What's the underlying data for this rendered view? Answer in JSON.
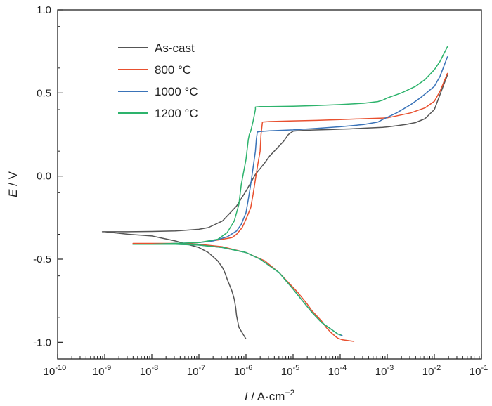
{
  "chart_data": {
    "type": "line",
    "xlabel_var": "I",
    "xlabel_unit": " / A·cm",
    "xlabel_exp": "−2",
    "ylabel_var": "E",
    "ylabel_unit": " / V",
    "x_scale": "log",
    "xlim": [
      -10,
      -1
    ],
    "ylim": [
      -1.1,
      1.0
    ],
    "x_ticks": [
      {
        "exp": -10,
        "mantissa": "10",
        "power": "-10"
      },
      {
        "exp": -9,
        "mantissa": "10",
        "power": "-9"
      },
      {
        "exp": -8,
        "mantissa": "10",
        "power": "-8"
      },
      {
        "exp": -7,
        "mantissa": "10",
        "power": "-7"
      },
      {
        "exp": -6,
        "mantissa": "10",
        "power": "-6"
      },
      {
        "exp": -5,
        "mantissa": "10",
        "power": "-5"
      },
      {
        "exp": -4,
        "mantissa": "10",
        "power": "-4"
      },
      {
        "exp": -3,
        "mantissa": "10",
        "power": "-3"
      },
      {
        "exp": -2,
        "mantissa": "10",
        "power": "-2"
      },
      {
        "exp": -1,
        "mantissa": "10",
        "power": "-1"
      }
    ],
    "y_ticks": [
      {
        "value": 1.0,
        "label": "1.0"
      },
      {
        "value": 0.5,
        "label": "0.5"
      },
      {
        "value": 0.0,
        "label": "0.0"
      },
      {
        "value": -0.5,
        "label": "-0.5"
      },
      {
        "value": -1.0,
        "label": "-1.0"
      }
    ],
    "legend_position": "top-left",
    "series": [
      {
        "name": "As-cast",
        "color": "#555555",
        "x_log10": [
          -6.0,
          -6.15,
          -6.2,
          -6.22,
          -6.25,
          -6.3,
          -6.4,
          -6.45,
          -6.5,
          -6.6,
          -6.8,
          -7.0,
          -7.5,
          -8.0,
          -8.5,
          -9.0,
          -9.05,
          -8.5,
          -8.0,
          -7.5,
          -7.0,
          -6.8,
          -6.5,
          -6.2,
          -6.0,
          -5.8,
          -5.6,
          -5.5,
          -5.4,
          -5.3,
          -5.2,
          -5.1,
          -5.0,
          -4.9,
          -4.6,
          -4.2,
          -4.0,
          -3.8,
          -3.5,
          -3.1,
          -3.0,
          -2.8,
          -2.6,
          -2.4,
          -2.2,
          -2.0,
          -1.88,
          -1.72
        ],
        "y": [
          -0.98,
          -0.91,
          -0.84,
          -0.79,
          -0.74,
          -0.69,
          -0.62,
          -0.58,
          -0.55,
          -0.51,
          -0.46,
          -0.43,
          -0.39,
          -0.36,
          -0.35,
          -0.335,
          -0.335,
          -0.335,
          -0.333,
          -0.33,
          -0.32,
          -0.31,
          -0.27,
          -0.18,
          -0.09,
          0.01,
          0.08,
          0.12,
          0.15,
          0.18,
          0.21,
          0.25,
          0.27,
          0.273,
          0.277,
          0.28,
          0.282,
          0.284,
          0.288,
          0.293,
          0.296,
          0.303,
          0.311,
          0.322,
          0.345,
          0.4,
          0.49,
          0.61
        ]
      },
      {
        "name": "800 °C",
        "color": "#e8502f",
        "x_log10": [
          -3.7,
          -3.95,
          -4.05,
          -4.1,
          -4.2,
          -4.3,
          -4.4,
          -4.5,
          -4.6,
          -4.7,
          -4.9,
          -5.1,
          -5.3,
          -5.6,
          -6.0,
          -6.5,
          -7.0,
          -7.5,
          -8.0,
          -8.4,
          -8.2,
          -7.8,
          -7.3,
          -7.0,
          -6.6,
          -6.3,
          -6.2,
          -6.08,
          -6.0,
          -5.9,
          -5.85,
          -5.8,
          -5.75,
          -5.7,
          -5.68,
          -5.65,
          -5.5,
          -5.0,
          -4.5,
          -4.0,
          -3.5,
          -3.1,
          -3.0,
          -2.5,
          -2.2,
          -2.0,
          -1.88,
          -1.72
        ],
        "y": [
          -0.995,
          -0.985,
          -0.975,
          -0.965,
          -0.94,
          -0.91,
          -0.87,
          -0.84,
          -0.81,
          -0.77,
          -0.7,
          -0.64,
          -0.58,
          -0.51,
          -0.46,
          -0.425,
          -0.41,
          -0.405,
          -0.405,
          -0.405,
          -0.405,
          -0.405,
          -0.405,
          -0.4,
          -0.385,
          -0.37,
          -0.35,
          -0.31,
          -0.26,
          -0.19,
          -0.11,
          -0.02,
          0.07,
          0.15,
          0.25,
          0.325,
          0.328,
          0.332,
          0.335,
          0.34,
          0.345,
          0.349,
          0.35,
          0.38,
          0.41,
          0.45,
          0.51,
          0.62
        ]
      },
      {
        "name": "1000 °C",
        "color": "#3a73b8",
        "x_log10": [
          -3.95,
          -4.05,
          -4.2,
          -4.4,
          -4.6,
          -4.8,
          -5.0,
          -5.3,
          -5.7,
          -6.0,
          -6.5,
          -7.0,
          -7.5,
          -8.0,
          -8.4,
          -8.0,
          -7.5,
          -7.0,
          -6.7,
          -6.4,
          -6.2,
          -6.1,
          -6.0,
          -5.95,
          -5.9,
          -5.85,
          -5.8,
          -5.78,
          -5.76,
          -5.7,
          -5.5,
          -5.0,
          -4.5,
          -4.0,
          -3.5,
          -3.2,
          -3.1,
          -2.8,
          -2.5,
          -2.3,
          -2.0,
          -1.88,
          -1.72
        ],
        "y": [
          -0.96,
          -0.95,
          -0.92,
          -0.88,
          -0.82,
          -0.75,
          -0.68,
          -0.58,
          -0.5,
          -0.46,
          -0.43,
          -0.415,
          -0.41,
          -0.41,
          -0.41,
          -0.41,
          -0.405,
          -0.4,
          -0.39,
          -0.365,
          -0.33,
          -0.29,
          -0.22,
          -0.14,
          -0.05,
          0.05,
          0.15,
          0.22,
          0.265,
          0.268,
          0.272,
          0.278,
          0.287,
          0.297,
          0.31,
          0.325,
          0.34,
          0.38,
          0.43,
          0.47,
          0.54,
          0.6,
          0.72
        ]
      },
      {
        "name": "1200 °C",
        "color": "#2db36c",
        "x_log10": [
          -3.98,
          -4.05,
          -4.2,
          -4.4,
          -4.6,
          -4.8,
          -5.0,
          -5.3,
          -5.7,
          -6.0,
          -6.5,
          -7.0,
          -7.5,
          -8.0,
          -8.4,
          -8.0,
          -7.5,
          -7.0,
          -6.6,
          -6.4,
          -6.25,
          -6.15,
          -6.1,
          -6.0,
          -5.95,
          -5.93,
          -5.9,
          -5.85,
          -5.8,
          -5.8,
          -5.7,
          -5.5,
          -5.0,
          -4.5,
          -4.0,
          -3.5,
          -3.2,
          -3.1,
          -3.0,
          -2.7,
          -2.4,
          -2.2,
          -2.0,
          -1.88,
          -1.72
        ],
        "y": [
          -0.955,
          -0.95,
          -0.92,
          -0.88,
          -0.82,
          -0.75,
          -0.68,
          -0.58,
          -0.5,
          -0.46,
          -0.43,
          -0.415,
          -0.41,
          -0.41,
          -0.41,
          -0.41,
          -0.405,
          -0.4,
          -0.38,
          -0.34,
          -0.27,
          -0.17,
          -0.05,
          0.1,
          0.22,
          0.25,
          0.27,
          0.33,
          0.4,
          0.415,
          0.418,
          0.418,
          0.42,
          0.424,
          0.43,
          0.438,
          0.448,
          0.456,
          0.47,
          0.5,
          0.54,
          0.58,
          0.64,
          0.69,
          0.78
        ]
      }
    ]
  }
}
